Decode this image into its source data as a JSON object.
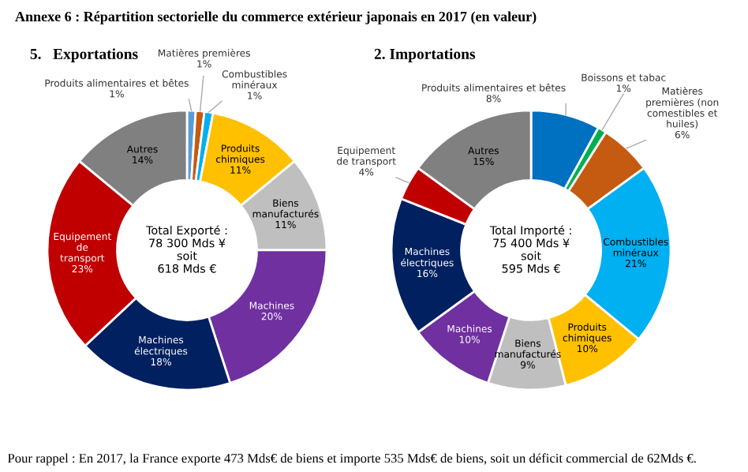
{
  "chart_data": [
    {
      "type": "donut",
      "title": "5.   Exportations",
      "categories": [
        "Produits alimentaires et bêtes",
        "Matières premières",
        "Combustibles minéraux",
        "Produits chimiques",
        "Biens manufacturés",
        "Machines",
        "Machines électriques",
        "Equipement de transport",
        "Autres"
      ],
      "values": [
        1,
        1,
        1,
        11,
        11,
        20,
        18,
        23,
        14
      ],
      "value_labels": [
        "1%",
        "1%",
        "1%",
        "11%",
        "11%",
        "20%",
        "18%",
        "23%",
        "14%"
      ],
      "colors": [
        "#5b9bd5",
        "#c55a11",
        "#00b0f0",
        "#ffc000",
        "#bfbfbf",
        "#7030a0",
        "#002060",
        "#c00000",
        "#808080"
      ],
      "annotations": [
        "Annexe 6 : Répartition sectorielle du commerce extérieur japonais en 2017 (en valeur)",
        "Total Exporté :\n78 300 Mds ¥\nsoit\n618 Mds €"
      ]
    },
    {
      "type": "donut",
      "title": "2. Importations",
      "categories": [
        "Produits alimentaires et bêtes",
        "Boissons et tabac",
        "Matières premières (non comestibles et huiles)",
        "Combustibles minéraux",
        "Produits chimiques",
        "Biens manufacturés",
        "Machines",
        "Machines électriques",
        "Equipement de transport",
        "Autres"
      ],
      "values": [
        8,
        1,
        6,
        21,
        10,
        9,
        10,
        16,
        4,
        15
      ],
      "value_labels": [
        "8%",
        "1%",
        "6%",
        "21%",
        "10%",
        "9%",
        "10%",
        "16%",
        "4%",
        "15%"
      ],
      "colors": [
        "#0070c0",
        "#00b050",
        "#c55a11",
        "#00b0f0",
        "#ffc000",
        "#bfbfbf",
        "#7030a0",
        "#002060",
        "#c00000",
        "#808080"
      ],
      "annotations": [
        "Total Importé :\n75 400 Mds ¥\nsoit\n595 Mds €",
        "Pour rappel : En 2017, la France exporte 473 Mds€ de biens et importe 535 Mds€ de biens, soit un déficit commercial de 62Mds €."
      ]
    }
  ]
}
